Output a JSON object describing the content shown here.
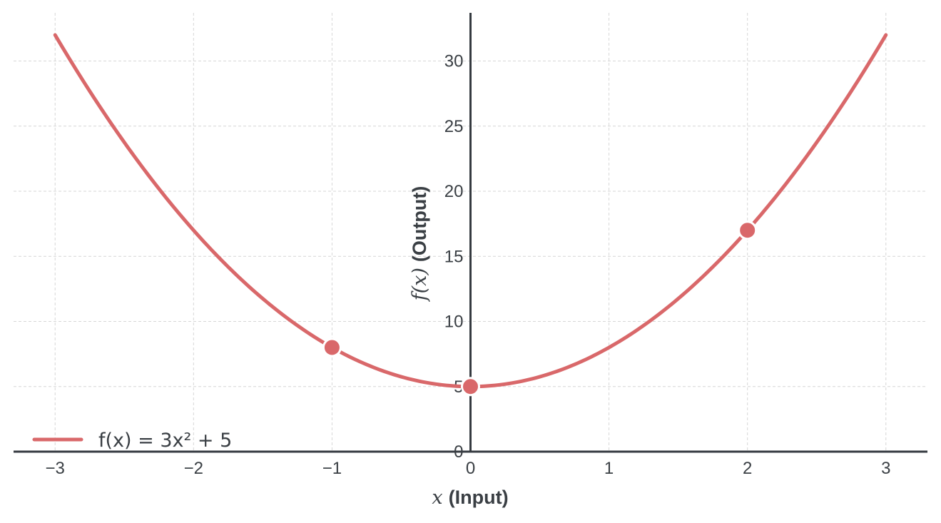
{
  "chart_data": {
    "type": "line",
    "xlabel": {
      "var": "x",
      "text": "(Input)"
    },
    "ylabel": {
      "var": "f(x)",
      "text": "(Output)"
    },
    "xlim": [
      -3.3,
      3.3
    ],
    "ylim": [
      0,
      33.7
    ],
    "xticks": [
      -3,
      -2,
      -1,
      0,
      1,
      2,
      3
    ],
    "xtick_labels": [
      "−3",
      "−2",
      "−1",
      "0",
      "1",
      "2",
      "3"
    ],
    "yticks": [
      0,
      5,
      10,
      15,
      20,
      25,
      30
    ],
    "ytick_labels": [
      "0",
      "5",
      "10",
      "15",
      "20",
      "25",
      "30"
    ],
    "grid": true,
    "legend_position": "lower-left",
    "series": [
      {
        "name": "f(x) = 3x² + 5",
        "color": "#d9686a",
        "function": "3*x^2+5",
        "x": [
          -3,
          -2.5,
          -2,
          -1.5,
          -1,
          -0.5,
          0,
          0.5,
          1,
          1.5,
          2,
          2.5,
          3
        ],
        "y": [
          32,
          23.75,
          17,
          11.75,
          8,
          5.75,
          5,
          5.75,
          8,
          11.75,
          17,
          23.75,
          32
        ]
      }
    ],
    "highlight_points": [
      {
        "x": -1,
        "y": 8
      },
      {
        "x": 0,
        "y": 5
      },
      {
        "x": 2,
        "y": 17
      }
    ]
  }
}
